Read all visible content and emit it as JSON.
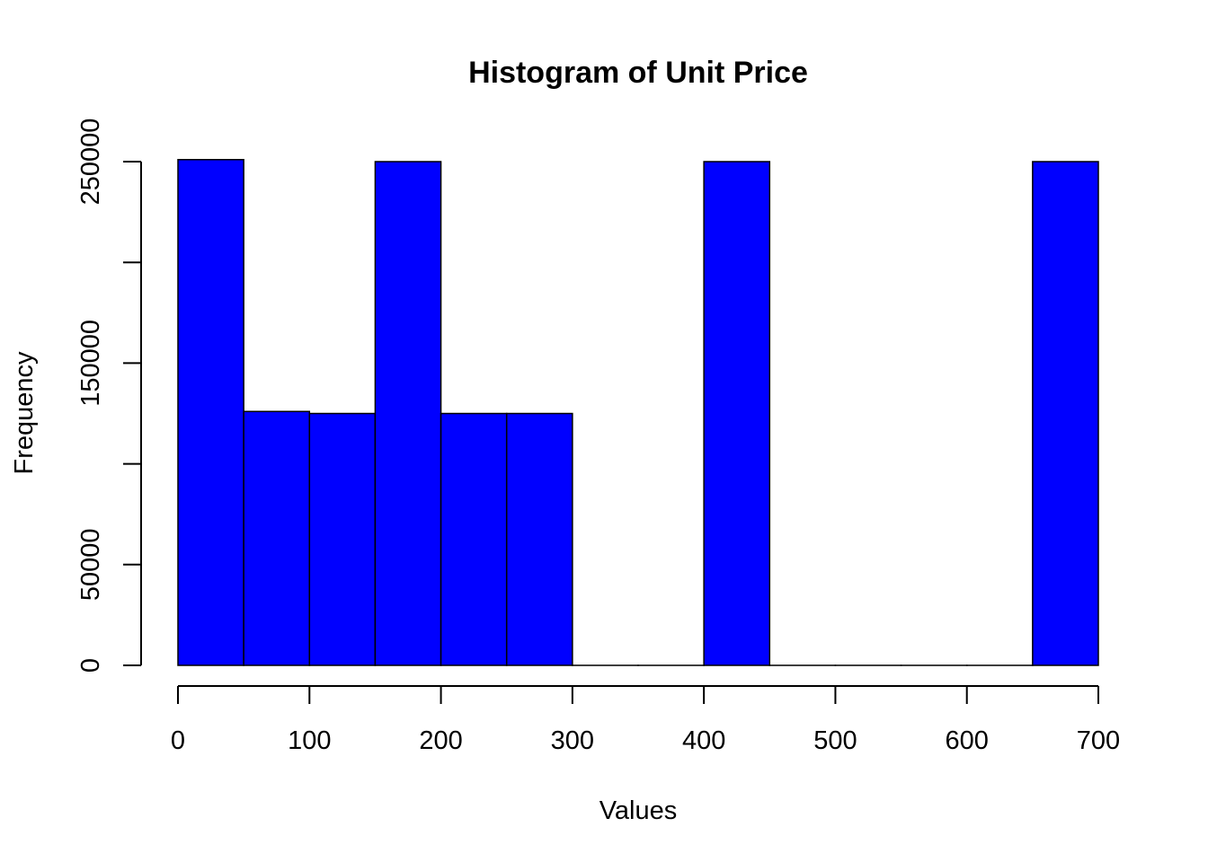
{
  "chart_data": {
    "type": "bar",
    "title": "Histogram of Unit Price",
    "xlabel": "Values",
    "ylabel": "Frequency",
    "bar_color": "#0000FF",
    "bins": [
      {
        "x0": 0,
        "x1": 50,
        "count": 251000
      },
      {
        "x0": 50,
        "x1": 100,
        "count": 126000
      },
      {
        "x0": 100,
        "x1": 150,
        "count": 125000
      },
      {
        "x0": 150,
        "x1": 200,
        "count": 250000
      },
      {
        "x0": 200,
        "x1": 250,
        "count": 125000
      },
      {
        "x0": 250,
        "x1": 300,
        "count": 125000
      },
      {
        "x0": 300,
        "x1": 350,
        "count": 0
      },
      {
        "x0": 350,
        "x1": 400,
        "count": 0
      },
      {
        "x0": 400,
        "x1": 450,
        "count": 250000
      },
      {
        "x0": 450,
        "x1": 500,
        "count": 0
      },
      {
        "x0": 500,
        "x1": 550,
        "count": 0
      },
      {
        "x0": 550,
        "x1": 600,
        "count": 0
      },
      {
        "x0": 600,
        "x1": 650,
        "count": 0
      },
      {
        "x0": 650,
        "x1": 700,
        "count": 250000
      }
    ],
    "xlim": [
      0,
      700
    ],
    "ylim": [
      0,
      250000
    ],
    "x_ticks": [
      0,
      100,
      200,
      300,
      400,
      500,
      600,
      700
    ],
    "y_ticks": [
      0,
      50000,
      100000,
      150000,
      200000,
      250000
    ],
    "y_tick_labels": [
      "0",
      "50000",
      "",
      "150000",
      "",
      "250000"
    ],
    "grid": false,
    "legend": "none"
  }
}
